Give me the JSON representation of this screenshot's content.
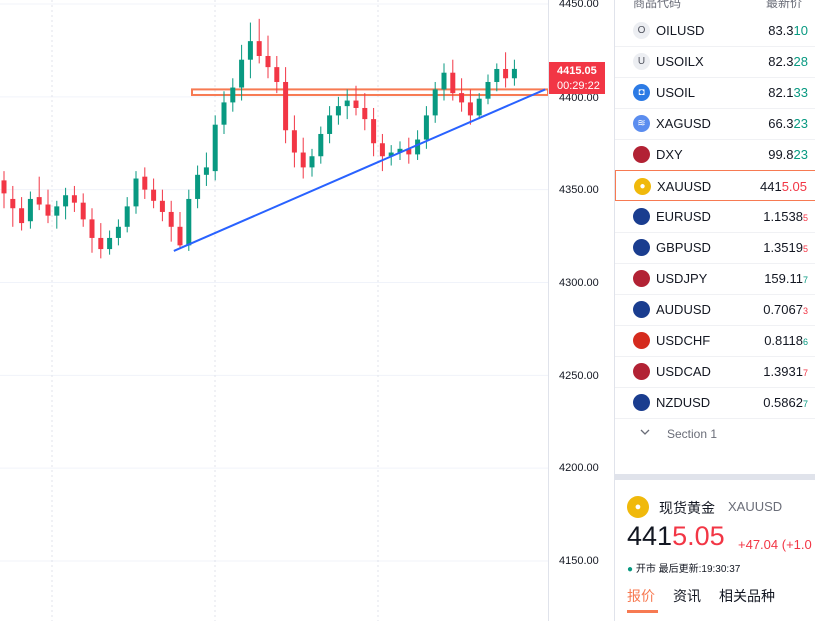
{
  "colors": {
    "up": "#089981",
    "down": "#f23645",
    "accent": "#f77a52",
    "trendline": "#2962ff",
    "zone": "#f77a52"
  },
  "axis": {
    "labels": [
      "4450.00",
      "4400.00",
      "4350.00",
      "4300.00",
      "4250.00",
      "4200.00",
      "4150.00"
    ]
  },
  "price_tag": {
    "price": "4415.05",
    "timer": "00:29:22"
  },
  "watchlist": {
    "header": {
      "symbol_col": "商品代码",
      "last_col": "最新价"
    },
    "items": [
      {
        "symbol": "OILUSD",
        "last_main": "83.3",
        "last_tail": "10",
        "tail_color": "up",
        "icon": "letter-o-icon"
      },
      {
        "symbol": "USOILX",
        "last_main": "82.3",
        "last_tail": "28",
        "tail_color": "up",
        "icon": "letter-u-icon"
      },
      {
        "symbol": "USOIL",
        "last_main": "82.1",
        "last_tail": "33",
        "tail_color": "up",
        "icon": "oil-drop-icon"
      },
      {
        "symbol": "XAGUSD",
        "last_main": "66.3",
        "last_tail": "23",
        "tail_color": "up",
        "icon": "silver-icon"
      },
      {
        "symbol": "DXY",
        "last_main": "99.8",
        "last_tail": "23",
        "tail_color": "up",
        "icon": "us-flag-icon"
      },
      {
        "symbol": "XAUUSD",
        "last_main": "441",
        "last_tail": "5.05",
        "tail_color": "down",
        "icon": "gold-coin-icon",
        "selected": true
      },
      {
        "symbol": "EURUSD",
        "last_main": "1.1538",
        "last_tail": "5",
        "tail_color": "down",
        "icon": "eu-flag-icon"
      },
      {
        "symbol": "GBPUSD",
        "last_main": "1.3519",
        "last_tail": "5",
        "tail_color": "down",
        "icon": "uk-flag-icon"
      },
      {
        "symbol": "USDJPY",
        "last_main": "159.11",
        "last_tail": "7",
        "tail_color": "up",
        "icon": "us-jp-flag-icon"
      },
      {
        "symbol": "AUDUSD",
        "last_main": "0.7067",
        "last_tail": "3",
        "tail_color": "down",
        "icon": "au-flag-icon"
      },
      {
        "symbol": "USDCHF",
        "last_main": "0.8118",
        "last_tail": "6",
        "tail_color": "up",
        "icon": "us-ch-flag-icon"
      },
      {
        "symbol": "USDCAD",
        "last_main": "1.3931",
        "last_tail": "7",
        "tail_color": "down",
        "icon": "us-ca-flag-icon"
      },
      {
        "symbol": "NZDUSD",
        "last_main": "0.5862",
        "last_tail": "7",
        "tail_color": "up",
        "icon": "nz-flag-icon"
      }
    ],
    "section_label": "Section 1"
  },
  "detail": {
    "name": "现货黄金",
    "code": "XAUUSD",
    "price_main": "441",
    "price_tail": "5.05",
    "change": "+47.04 (+1.0",
    "status_open": "开市",
    "status_updated": "最后更新:19:30:37",
    "tabs": [
      "报价",
      "资讯",
      "相关品种"
    ]
  },
  "chart_data": {
    "type": "candlestick",
    "symbol": "XAUUSD",
    "ylim": [
      4125,
      4455
    ],
    "yticks": [
      4450,
      4400,
      4350,
      4300,
      4250,
      4200,
      4150
    ],
    "last_price": 4415.05,
    "grid": true,
    "candles": [
      {
        "o": 4355,
        "h": 4360,
        "l": 4340,
        "c": 4348
      },
      {
        "o": 4345,
        "h": 4352,
        "l": 4330,
        "c": 4340
      },
      {
        "o": 4340,
        "h": 4346,
        "l": 4328,
        "c": 4332
      },
      {
        "o": 4333,
        "h": 4349,
        "l": 4329,
        "c": 4345
      },
      {
        "o": 4346,
        "h": 4357,
        "l": 4339,
        "c": 4342
      },
      {
        "o": 4342,
        "h": 4350,
        "l": 4332,
        "c": 4336
      },
      {
        "o": 4336,
        "h": 4344,
        "l": 4329,
        "c": 4341
      },
      {
        "o": 4341,
        "h": 4351,
        "l": 4334,
        "c": 4347
      },
      {
        "o": 4347,
        "h": 4352,
        "l": 4338,
        "c": 4343
      },
      {
        "o": 4343,
        "h": 4348,
        "l": 4330,
        "c": 4334
      },
      {
        "o": 4334,
        "h": 4340,
        "l": 4316,
        "c": 4324
      },
      {
        "o": 4324,
        "h": 4332,
        "l": 4313,
        "c": 4318
      },
      {
        "o": 4318,
        "h": 4328,
        "l": 4315,
        "c": 4324
      },
      {
        "o": 4324,
        "h": 4334,
        "l": 4320,
        "c": 4330
      },
      {
        "o": 4330,
        "h": 4346,
        "l": 4327,
        "c": 4341
      },
      {
        "o": 4341,
        "h": 4360,
        "l": 4337,
        "c": 4356
      },
      {
        "o": 4357,
        "h": 4362,
        "l": 4345,
        "c": 4350
      },
      {
        "o": 4350,
        "h": 4356,
        "l": 4340,
        "c": 4344
      },
      {
        "o": 4344,
        "h": 4350,
        "l": 4333,
        "c": 4338
      },
      {
        "o": 4338,
        "h": 4344,
        "l": 4322,
        "c": 4330
      },
      {
        "o": 4330,
        "h": 4338,
        "l": 4318,
        "c": 4320
      },
      {
        "o": 4320,
        "h": 4350,
        "l": 4317,
        "c": 4345
      },
      {
        "o": 4345,
        "h": 4363,
        "l": 4340,
        "c": 4358
      },
      {
        "o": 4358,
        "h": 4370,
        "l": 4352,
        "c": 4362
      },
      {
        "o": 4360,
        "h": 4390,
        "l": 4355,
        "c": 4385
      },
      {
        "o": 4385,
        "h": 4403,
        "l": 4380,
        "c": 4397
      },
      {
        "o": 4397,
        "h": 4410,
        "l": 4392,
        "c": 4405
      },
      {
        "o": 4405,
        "h": 4428,
        "l": 4398,
        "c": 4420
      },
      {
        "o": 4420,
        "h": 4440,
        "l": 4410,
        "c": 4430
      },
      {
        "o": 4430,
        "h": 4442,
        "l": 4418,
        "c": 4422
      },
      {
        "o": 4422,
        "h": 4433,
        "l": 4410,
        "c": 4416
      },
      {
        "o": 4416,
        "h": 4422,
        "l": 4402,
        "c": 4408
      },
      {
        "o": 4408,
        "h": 4416,
        "l": 4375,
        "c": 4382
      },
      {
        "o": 4382,
        "h": 4390,
        "l": 4362,
        "c": 4370
      },
      {
        "o": 4370,
        "h": 4378,
        "l": 4356,
        "c": 4362
      },
      {
        "o": 4362,
        "h": 4372,
        "l": 4357,
        "c": 4368
      },
      {
        "o": 4368,
        "h": 4384,
        "l": 4364,
        "c": 4380
      },
      {
        "o": 4380,
        "h": 4395,
        "l": 4375,
        "c": 4390
      },
      {
        "o": 4390,
        "h": 4400,
        "l": 4385,
        "c": 4395
      },
      {
        "o": 4395,
        "h": 4404,
        "l": 4388,
        "c": 4398
      },
      {
        "o": 4398,
        "h": 4406,
        "l": 4390,
        "c": 4394
      },
      {
        "o": 4394,
        "h": 4402,
        "l": 4382,
        "c": 4388
      },
      {
        "o": 4388,
        "h": 4394,
        "l": 4368,
        "c": 4375
      },
      {
        "o": 4375,
        "h": 4380,
        "l": 4360,
        "c": 4368
      },
      {
        "o": 4368,
        "h": 4374,
        "l": 4363,
        "c": 4370
      },
      {
        "o": 4370,
        "h": 4376,
        "l": 4366,
        "c": 4372
      },
      {
        "o": 4372,
        "h": 4378,
        "l": 4364,
        "c": 4369
      },
      {
        "o": 4369,
        "h": 4382,
        "l": 4366,
        "c": 4377
      },
      {
        "o": 4377,
        "h": 4395,
        "l": 4372,
        "c": 4390
      },
      {
        "o": 4390,
        "h": 4408,
        "l": 4386,
        "c": 4404
      },
      {
        "o": 4404,
        "h": 4418,
        "l": 4398,
        "c": 4413
      },
      {
        "o": 4413,
        "h": 4420,
        "l": 4398,
        "c": 4402
      },
      {
        "o": 4402,
        "h": 4410,
        "l": 4392,
        "c": 4397
      },
      {
        "o": 4397,
        "h": 4404,
        "l": 4385,
        "c": 4390
      },
      {
        "o": 4390,
        "h": 4402,
        "l": 4388,
        "c": 4399
      },
      {
        "o": 4399,
        "h": 4412,
        "l": 4396,
        "c": 4408
      },
      {
        "o": 4408,
        "h": 4418,
        "l": 4403,
        "c": 4415
      },
      {
        "o": 4415,
        "h": 4424,
        "l": 4405,
        "c": 4410
      },
      {
        "o": 4410,
        "h": 4420,
        "l": 4406,
        "c": 4415.05
      }
    ],
    "support_zone": [
      4401,
      4404
    ],
    "trendline": {
      "from": {
        "index": 19.3,
        "price": 4317
      },
      "to": {
        "index": 61.5,
        "price": 4404
      }
    }
  }
}
